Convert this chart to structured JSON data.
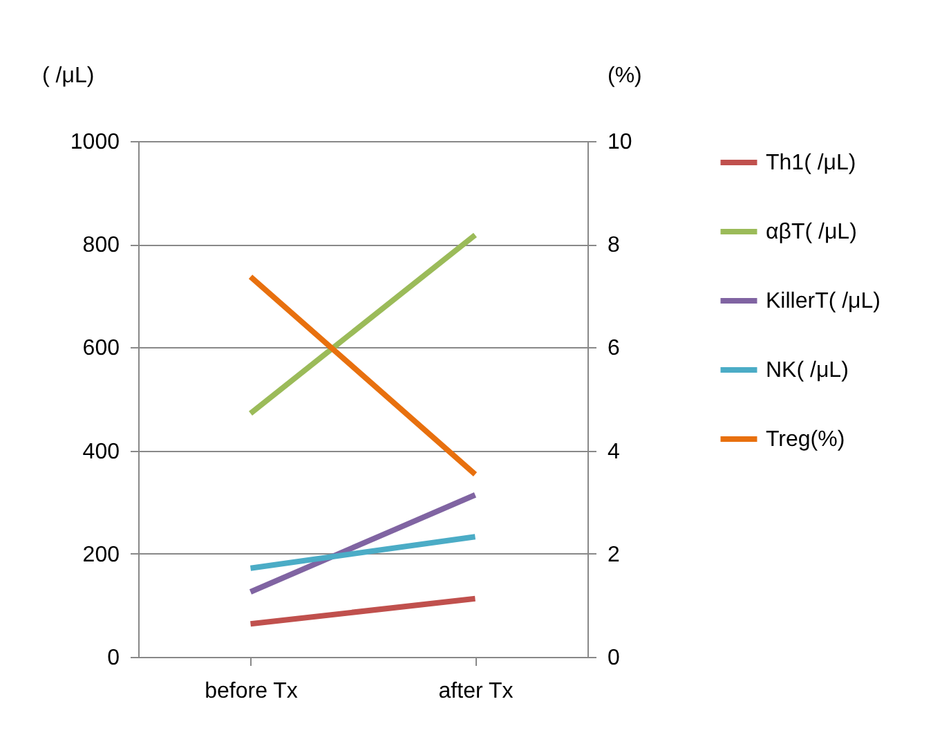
{
  "chart_data": {
    "type": "line",
    "ylabel": "( /μL)",
    "y2label": "(%)",
    "categories": [
      "before Tx",
      "after Tx"
    ],
    "series": [
      {
        "name": "Th1( /μL)",
        "color": "#c0504d",
        "values": [
          64,
          113
        ]
      },
      {
        "name": "αβT( /μL)",
        "color": "#9bbb59",
        "values": [
          472,
          818
        ]
      },
      {
        "name": "KillerT( /μL)",
        "color": "#8064a2",
        "values": [
          126,
          314
        ]
      },
      {
        "name": "NK( /μL)",
        "color": "#4bacc6",
        "values": [
          172,
          233
        ]
      },
      {
        "name": "Treg(%)",
        "color": "#e8700e",
        "values": [
          7.37,
          3.54
        ],
        "axis": "y2"
      }
    ],
    "ylim": [
      0,
      1000
    ],
    "yticks": [
      0,
      200,
      400,
      600,
      800,
      1000
    ],
    "y2lim": [
      0,
      10
    ],
    "y2ticks": [
      0,
      2,
      4,
      6,
      8,
      10
    ],
    "grid": "y",
    "legend": "right",
    "marker": "none"
  }
}
